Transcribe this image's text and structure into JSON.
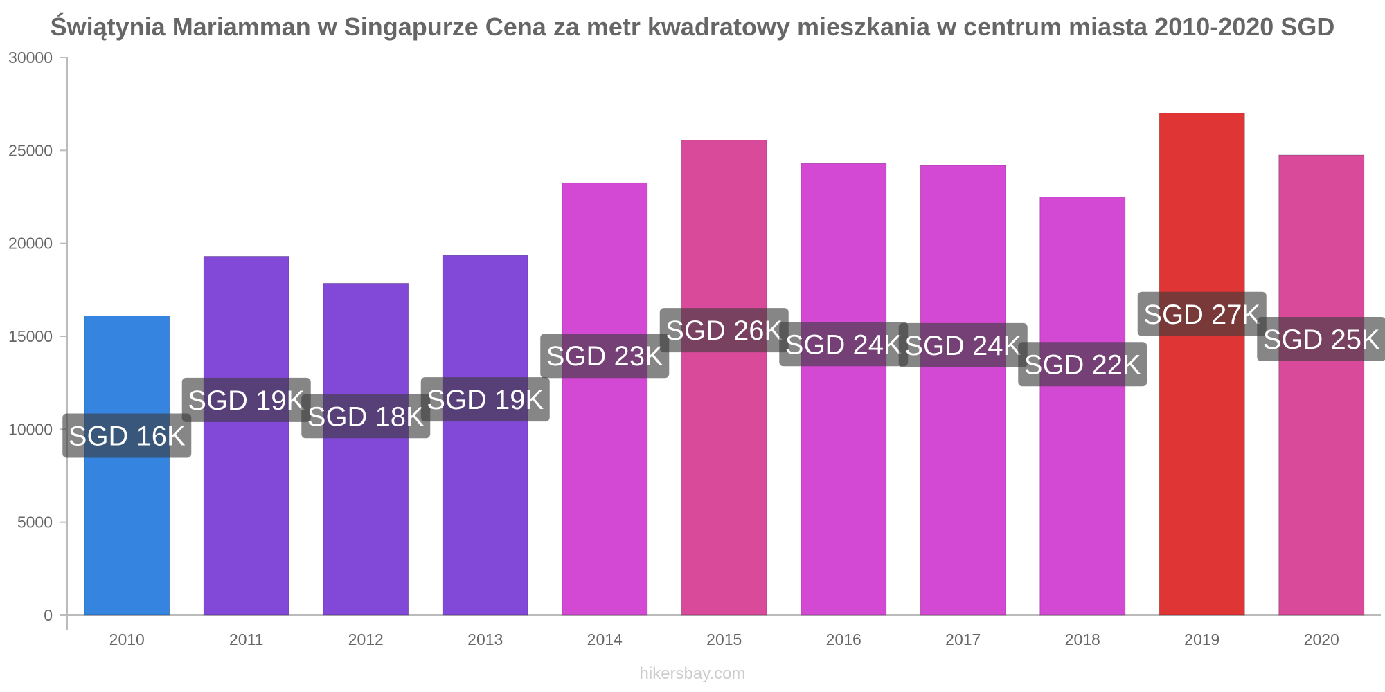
{
  "title": "Świątynia Mariamman w Singapurze Cena za metr kwadratowy mieszkania w centrum miasta 2010-2020 SGD",
  "watermark": "hikersbay.com",
  "chart_data": {
    "type": "bar",
    "title": "Świątynia Mariamman w Singapurze Cena za metr kwadratowy mieszkania w centrum miasta 2010-2020 SGD",
    "xlabel": "",
    "ylabel": "",
    "ylim": [
      0,
      30000
    ],
    "yticks": [
      0,
      5000,
      10000,
      15000,
      20000,
      25000,
      30000
    ],
    "categories": [
      "2010",
      "2011",
      "2012",
      "2013",
      "2014",
      "2015",
      "2016",
      "2017",
      "2018",
      "2019",
      "2020"
    ],
    "values": [
      16100,
      19300,
      17850,
      19350,
      23250,
      25550,
      24300,
      24200,
      22500,
      27000,
      24750
    ],
    "labels": [
      "SGD 16K",
      "SGD 19K",
      "SGD 18K",
      "SGD 19K",
      "SGD 23K",
      "SGD 26K",
      "SGD 24K",
      "SGD 24K",
      "SGD 22K",
      "SGD 27K",
      "SGD 25K"
    ],
    "colors": [
      "#3584e0",
      "#8249d8",
      "#8249d8",
      "#8249d8",
      "#d349d3",
      "#d94a9a",
      "#d349d3",
      "#d349d3",
      "#d349d3",
      "#e03535",
      "#d94a9a"
    ],
    "grid": false,
    "legend": "none"
  }
}
